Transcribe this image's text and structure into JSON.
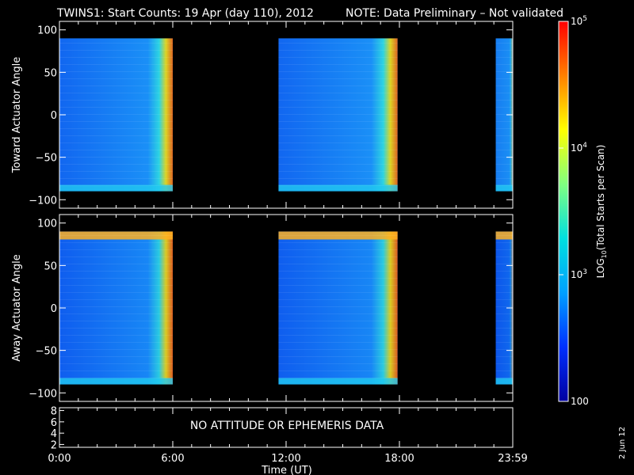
{
  "header": {
    "title": "TWINS1: Start Counts: 19 Apr (day 110), 2012",
    "note": "NOTE: Data Preliminary – Not validated",
    "note_color": "#ff2020"
  },
  "footer": {
    "date_stamp": "2 Jun 12"
  },
  "chart_data": [
    {
      "type": "heatmap",
      "panel": "top",
      "ylabel": "Toward Actuator Angle",
      "ylim": [
        -110,
        110
      ],
      "yticks": [
        "100",
        "50",
        "0",
        "−50",
        "−100"
      ],
      "ytick_values": [
        100,
        50,
        0,
        -50,
        -100
      ],
      "y_data_range": [
        -90,
        90
      ],
      "data_blocks_hours": [
        [
          0.0,
          6.0
        ],
        [
          11.6,
          17.9
        ],
        [
          23.1,
          24.0
        ]
      ],
      "gap_color": "#000000"
    },
    {
      "type": "heatmap",
      "panel": "middle",
      "ylabel": "Away Actuator Angle",
      "ylim": [
        -110,
        110
      ],
      "yticks": [
        "100",
        "50",
        "0",
        "−50",
        "−100"
      ],
      "ytick_values": [
        100,
        50,
        0,
        -50,
        -100
      ],
      "y_data_range": [
        -90,
        90
      ],
      "data_blocks_hours": [
        [
          0.0,
          6.0
        ],
        [
          11.6,
          17.9
        ],
        [
          23.1,
          24.0
        ]
      ],
      "gap_color": "#000000"
    },
    {
      "type": "line",
      "panel": "bottom",
      "ylim": [
        1.5,
        8.5
      ],
      "yticks": [
        "8",
        "6",
        "4",
        "2"
      ],
      "ytick_values": [
        8,
        6,
        4,
        2
      ],
      "message": "NO ATTITUDE OR EPHEMERIS DATA"
    }
  ],
  "time_axis": {
    "label": "Time (UT)",
    "range_hours": [
      0,
      24
    ],
    "ticks": [
      {
        "label": "0:00",
        "hour": 0
      },
      {
        "label": "6:00",
        "hour": 6
      },
      {
        "label": "12:00",
        "hour": 12
      },
      {
        "label": "18:00",
        "hour": 18
      },
      {
        "label": "23:59",
        "hour": 24
      }
    ]
  },
  "colorbar": {
    "label_prefix": "LOG",
    "label_sub": "10",
    "label_suffix": "(Total Starts per Scan)",
    "scale": "log",
    "range": [
      100,
      100000
    ],
    "ticks": [
      {
        "base": "10",
        "exp": "5",
        "value": 100000
      },
      {
        "base": "10",
        "exp": "4",
        "value": 10000
      },
      {
        "base": "10",
        "exp": "3",
        "value": 1000
      },
      {
        "base": "100",
        "exp": "",
        "value": 100
      }
    ],
    "colors": [
      "#0000a0",
      "#0030ff",
      "#00a0ff",
      "#00e0e0",
      "#80ff80",
      "#ffff00",
      "#ff8000",
      "#ff0000"
    ]
  }
}
